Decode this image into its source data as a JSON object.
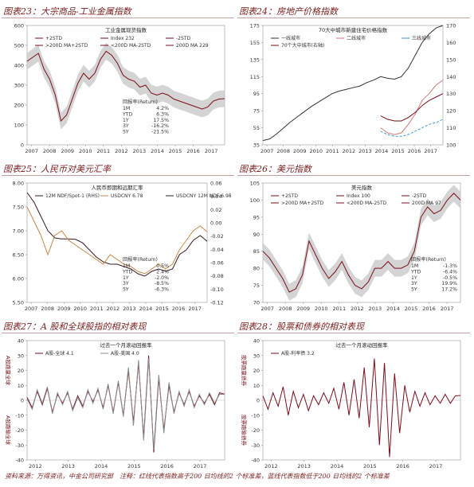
{
  "footer": {
    "source": "资料来源：万得资讯，中金公司研究部",
    "note": "注释：红线代表指数高于200 日均线的2 个标准差，蓝线代表指数低于200 日均线的2 个标准差"
  },
  "colors": {
    "price": "#7a0f1a",
    "upper": "#d0202a",
    "lower": "#2a8fd4",
    "band": "#c9c9c9",
    "accent": "#c8884a"
  },
  "chart_data": [
    {
      "id": "fig23",
      "type": "line",
      "title": "图表23：大宗商品-工业金属指数",
      "subtitle": "工业金属现货指数",
      "x_ticks": [
        "2007",
        "2008",
        "2009",
        "2010",
        "2011",
        "2012",
        "2013",
        "2014",
        "2015",
        "2016",
        "2017"
      ],
      "ylim": [
        0,
        600
      ],
      "y_ticks": [
        "0",
        "100",
        "200",
        "300",
        "400",
        "500",
        "600"
      ],
      "legend": [
        "+2STD",
        "Index 232",
        "-2STD",
        ">200D MA+2STD",
        "<200D MA-2STD",
        "200D MA 229"
      ],
      "series": [
        {
          "name": "Index",
          "values": [
            420,
            440,
            460,
            380,
            330,
            250,
            120,
            150,
            230,
            310,
            360,
            330,
            360,
            430,
            470,
            450,
            410,
            350,
            330,
            320,
            290,
            300,
            260,
            250,
            260,
            250,
            230,
            220,
            210,
            200,
            190,
            180,
            190,
            220,
            230,
            232
          ]
        }
      ],
      "return_table": {
        "header": "回报率(Return)",
        "rows": [
          [
            "1M",
            "4.2%"
          ],
          [
            "YTD",
            "6.3%"
          ],
          [
            "1Y",
            "17.5%"
          ],
          [
            "3Y",
            "-16.2%"
          ],
          [
            "5Y",
            "-21.5%"
          ]
        ]
      }
    },
    {
      "id": "fig24",
      "type": "line",
      "title": "图表24：房地产价格指数",
      "subtitle": "70大中城市新建住宅价格指数",
      "x_ticks": [
        "2007",
        "2008",
        "2009",
        "2010",
        "2011",
        "2012",
        "2013",
        "2014",
        "2015",
        "2016",
        "2017"
      ],
      "ylim": [
        35,
        175
      ],
      "y_ticks": [
        "35",
        "55",
        "75",
        "95",
        "115",
        "135",
        "155",
        "175"
      ],
      "ylim_right": [
        100,
        170
      ],
      "y_ticks_right": [
        "100",
        "110",
        "120",
        "130",
        "140",
        "150",
        "160",
        "170"
      ],
      "legend": [
        "一线城市",
        "二线城市",
        "三线城市",
        "70个大中城市(右轴)"
      ],
      "series": [
        {
          "name": "一线城市",
          "values": [
            40,
            42,
            48,
            55,
            62,
            68,
            74,
            80,
            85,
            90,
            95,
            98,
            100,
            102,
            104,
            108,
            111,
            115,
            113,
            112,
            115,
            125,
            140,
            155,
            165,
            172,
            175
          ]
        },
        {
          "name": "二线城市",
          "values": [
            null,
            null,
            null,
            null,
            null,
            null,
            null,
            null,
            null,
            null,
            null,
            null,
            null,
            null,
            null,
            null,
            null,
            110,
            107,
            106,
            107,
            112,
            118,
            126,
            130,
            135,
            138
          ]
        },
        {
          "name": "三线城市",
          "values": [
            null,
            null,
            null,
            null,
            null,
            null,
            null,
            null,
            null,
            null,
            null,
            null,
            null,
            null,
            null,
            null,
            null,
            108,
            106,
            105,
            105,
            106,
            108,
            110,
            112,
            113,
            115
          ]
        },
        {
          "name": "70个大中城市(右轴)",
          "values": [
            null,
            null,
            null,
            null,
            null,
            null,
            null,
            null,
            null,
            null,
            null,
            null,
            null,
            null,
            null,
            null,
            null,
            117,
            115,
            114,
            114,
            116,
            119,
            123,
            126,
            128,
            130
          ]
        }
      ]
    },
    {
      "id": "fig25",
      "type": "line",
      "title": "图表25：人民币对美元汇率",
      "subtitle": "人民币即期和远期汇率",
      "x_ticks": [
        "2007",
        "2008",
        "2009",
        "2010",
        "2011",
        "2012",
        "2013",
        "2014",
        "2015",
        "2016",
        "2017"
      ],
      "ylim": [
        5.5,
        8.0
      ],
      "y_ticks": [
        "5.50",
        "6.00",
        "6.50",
        "7.00",
        "7.50",
        "8.00"
      ],
      "ylim_right": [
        -0.12,
        0.06
      ],
      "y_ticks_right": [
        "0.06",
        "0.04",
        "0.02",
        "0.00",
        "-0.02",
        "-0.04",
        "-0.06",
        "-0.08",
        "-0.10",
        "-0.12"
      ],
      "legend": [
        "12M NDF/Spot-1 (RHS)",
        "USDCNY 6.78",
        "USDCNY 12M NDF 6.98"
      ],
      "series": [
        {
          "name": "USDCNY",
          "values": [
            7.8,
            7.6,
            7.3,
            7.0,
            6.85,
            6.83,
            6.83,
            6.82,
            6.75,
            6.6,
            6.45,
            6.35,
            6.3,
            6.3,
            6.25,
            6.2,
            6.1,
            6.05,
            6.15,
            6.2,
            6.15,
            6.2,
            6.5,
            6.6,
            6.8,
            6.9,
            6.78
          ]
        },
        {
          "name": "USDCNY 12M NDF",
          "values": [
            7.5,
            7.2,
            6.9,
            6.5,
            6.9,
            7.0,
            6.8,
            6.7,
            6.6,
            6.5,
            6.4,
            6.3,
            6.5,
            6.4,
            6.3,
            6.25,
            6.15,
            6.1,
            6.2,
            6.3,
            6.2,
            6.3,
            6.6,
            6.8,
            7.0,
            7.1,
            6.98
          ]
        }
      ],
      "return_table": {
        "header": "回报率(Return)",
        "rows": [
          [
            "1M",
            "0.5%"
          ],
          [
            "YTD",
            "2.4%"
          ],
          [
            "1Y",
            "-2.0%"
          ],
          [
            "3Y",
            "-8.5%"
          ],
          [
            "5Y",
            "-6.3%"
          ]
        ]
      }
    },
    {
      "id": "fig26",
      "type": "line",
      "title": "图表26：美元指数",
      "subtitle": "美元指数",
      "x_ticks": [
        "2007",
        "2008",
        "2009",
        "2010",
        "2011",
        "2012",
        "2013",
        "2014",
        "2015",
        "2016",
        "2017"
      ],
      "ylim": [
        70,
        105
      ],
      "y_ticks": [
        "70",
        "75",
        "80",
        "85",
        "90",
        "95",
        "100",
        "105"
      ],
      "legend": [
        "+2STD",
        "Index 100",
        "-2STD",
        ">200D MA+2STD",
        "<200D MA-2STD",
        "200D MA 97"
      ],
      "series": [
        {
          "name": "Index",
          "values": [
            85,
            83,
            80,
            77,
            73,
            74,
            78,
            88,
            84,
            80,
            77,
            79,
            82,
            78,
            75,
            74,
            76,
            80,
            80,
            82,
            80,
            80,
            81,
            85,
            95,
            98,
            96,
            97,
            100,
            102,
            100
          ]
        }
      ],
      "return_table": {
        "header": "回报率(Return)",
        "rows": [
          [
            "1M",
            "-1.3%"
          ],
          [
            "YTD",
            "-6.4%"
          ],
          [
            "1Y",
            "-0.5%"
          ],
          [
            "3Y",
            "19.9%"
          ],
          [
            "5Y",
            "17.2%"
          ]
        ]
      }
    },
    {
      "id": "fig27",
      "type": "line",
      "title": "图表27：A 股和全球股指的相对表现",
      "subtitle": "过去一个月滚动回报率",
      "x_ticks": [
        "2012",
        "2013",
        "2014",
        "2015",
        "2016",
        "2017"
      ],
      "ylim": [
        -40,
        40
      ],
      "y_ticks": [
        "40",
        "30",
        "20",
        "10",
        "0",
        "-10",
        "-20",
        "-30",
        "-40"
      ],
      "ylabel_top": "A股跑赢全球",
      "ylabel_bottom": "A股跑输全球",
      "legend": [
        "A股-全球 4.1",
        "A股-美国 4.0"
      ],
      "series": [
        {
          "name": "A股-全球",
          "values": [
            2,
            -5,
            6,
            -3,
            8,
            -8,
            4,
            -2,
            5,
            -6,
            3,
            -4,
            6,
            -1,
            7,
            -5,
            10,
            -8,
            12,
            -10,
            20,
            -15,
            25,
            -25,
            30,
            -35,
            15,
            -20,
            10,
            -8,
            5,
            -3,
            6,
            -4,
            3,
            -2,
            4,
            -3,
            5,
            4.1
          ]
        },
        {
          "name": "A股-美国",
          "values": [
            1,
            -6,
            7,
            -2,
            9,
            -9,
            5,
            -3,
            6,
            -7,
            2,
            -5,
            7,
            -2,
            8,
            -6,
            11,
            -9,
            13,
            -11,
            22,
            -17,
            27,
            -27,
            28,
            -33,
            17,
            -22,
            12,
            -9,
            6,
            -4,
            7,
            -5,
            4,
            -3,
            5,
            -2,
            4,
            4.0
          ]
        }
      ]
    },
    {
      "id": "fig28",
      "type": "line",
      "title": "图表28：股票和债券的相对表现",
      "subtitle": "过去一个月滚动回报率",
      "x_ticks": [
        "2012",
        "2013",
        "2014",
        "2015",
        "2016",
        "2017"
      ],
      "ylim": [
        -40,
        40
      ],
      "y_ticks": [
        "40",
        "30",
        "20",
        "10",
        "0",
        "-10",
        "-20",
        "-30",
        "-40"
      ],
      "ylabel_top": "股票跑赢债券",
      "ylabel_bottom": "股票跑输债券",
      "legend": [
        "A股-利率债 3.2"
      ],
      "series": [
        {
          "name": "A股-利率债",
          "values": [
            3,
            -6,
            5,
            -4,
            9,
            -10,
            6,
            -5,
            4,
            -7,
            3,
            -3,
            5,
            -2,
            8,
            -6,
            12,
            -10,
            14,
            -12,
            22,
            -18,
            28,
            -30,
            25,
            -38,
            18,
            -22,
            10,
            -8,
            6,
            -4,
            5,
            -3,
            3,
            -2,
            4,
            -2,
            3,
            3.2
          ]
        }
      ]
    }
  ]
}
